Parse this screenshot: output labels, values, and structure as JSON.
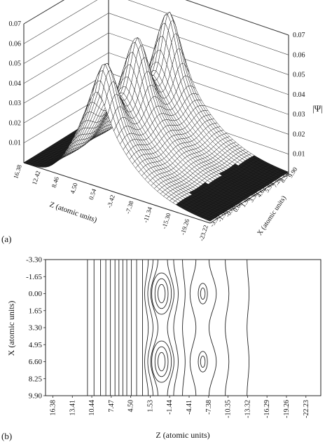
{
  "figure": {
    "panel_a_label": "(a)",
    "panel_b_label": "(b)"
  },
  "chart_data": [
    {
      "type": "surface",
      "panel": "(a)",
      "zlabel": "|Ψ|",
      "xlabel": "Z (atomic units)",
      "ylabel": "X (atomic units)",
      "z_ticks_left": [
        "0.07",
        "0.06",
        "0.05",
        "0.04",
        "0.03",
        "0.02",
        "0.01"
      ],
      "z_ticks_right": [
        "0.07",
        "0.06",
        "0.05",
        "0.04",
        "0.03",
        "0.02",
        "0.01"
      ],
      "zlim": [
        0,
        0.07
      ],
      "x_ticks": [
        "16.38",
        "12.42",
        "8.46",
        "4.50",
        "0.54",
        "-3.42",
        "-7.38",
        "-11.34",
        "-15.30",
        "-19.26",
        "-23.22"
      ],
      "y_ticks": [
        "9.90",
        "8.58",
        "7.26",
        "5.94",
        "4.62",
        "3.30",
        "1.98",
        "0.66",
        "-0.66",
        "-1.98",
        "-3.30"
      ],
      "peaks": [
        {
          "z": 0.62,
          "x": -1.98,
          "value": 0.06
        },
        {
          "z": 0.62,
          "x": 3.3,
          "value": 0.063
        },
        {
          "z": 0.62,
          "x": 8.58,
          "value": 0.066
        }
      ]
    },
    {
      "type": "contour",
      "panel": "(b)",
      "xlabel": "Z (atomic units)",
      "ylabel": "X (atomic units)",
      "x_ticks": [
        "16.38",
        "13.41",
        "10.44",
        "7.47",
        "4.50",
        "1.53",
        "-1.44",
        "-4.41",
        "-7.38",
        "-10.35",
        "-13.32",
        "-16.29",
        "-19.26",
        "-22.23"
      ],
      "y_ticks": [
        "-3.30",
        "-1.65",
        "0.00",
        "1.65",
        "3.30",
        "4.95",
        "6.60",
        "8.25",
        "9.90"
      ],
      "xlim": [
        17.5,
        -24.5
      ],
      "ylim": [
        -3.3,
        9.9
      ],
      "centers": [
        {
          "z": -0.2,
          "x": 0.0
        },
        {
          "z": -0.2,
          "x": 6.6
        },
        {
          "z": -6.5,
          "x": 0.0
        },
        {
          "z": -6.5,
          "x": 6.6
        }
      ],
      "vertical_contours_z": [
        11.1,
        10.1,
        9.1,
        8.3,
        7.6,
        6.9,
        6.3,
        5.7,
        5.1,
        4.4,
        3.6,
        2.7
      ]
    }
  ]
}
